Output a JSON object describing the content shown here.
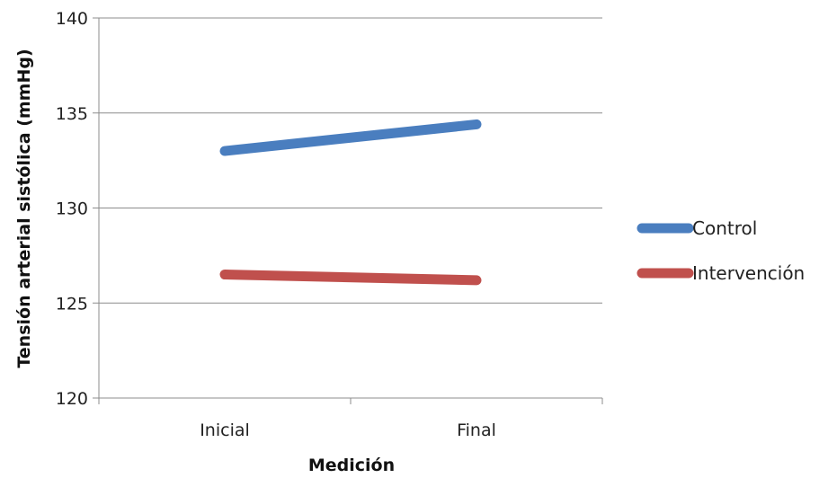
{
  "chart_data": {
    "type": "line",
    "categories": [
      "Inicial",
      "Final"
    ],
    "series": [
      {
        "name": "Control",
        "values": [
          133.0,
          134.4
        ],
        "color": "#4a7ebf"
      },
      {
        "name": "Intervención",
        "values": [
          126.5,
          126.2
        ],
        "color": "#c0504d"
      }
    ],
    "xlabel": "Medición",
    "ylabel": "Tensión arterial sistólica (mmHg)",
    "ylim": [
      120,
      140
    ],
    "yticks": [
      120,
      125,
      130,
      135,
      140
    ],
    "grid": "horizontal",
    "legend": "right"
  }
}
